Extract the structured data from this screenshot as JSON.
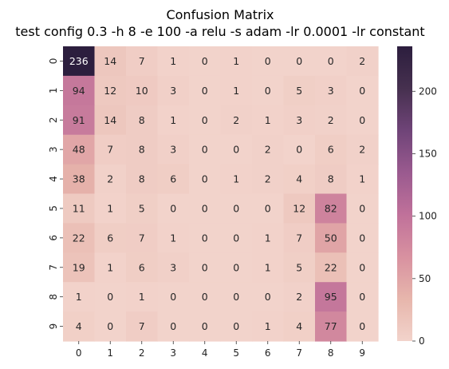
{
  "chart_data": {
    "type": "heatmap",
    "title": "Confusion Matrix",
    "subtitle": "test config 0.3 -h 8 -e 100 -a relu -s adam -lr 0.0001 -lr constant",
    "x_labels": [
      "0",
      "1",
      "2",
      "3",
      "4",
      "5",
      "6",
      "7",
      "8",
      "9"
    ],
    "y_labels": [
      "0",
      "1",
      "2",
      "3",
      "4",
      "5",
      "6",
      "7",
      "8",
      "9"
    ],
    "values": [
      [
        236,
        14,
        7,
        1,
        0,
        1,
        0,
        0,
        0,
        2
      ],
      [
        94,
        12,
        10,
        3,
        0,
        1,
        0,
        5,
        3,
        0
      ],
      [
        91,
        14,
        8,
        1,
        0,
        2,
        1,
        3,
        2,
        0
      ],
      [
        48,
        7,
        8,
        3,
        0,
        0,
        2,
        0,
        6,
        2
      ],
      [
        38,
        2,
        8,
        6,
        0,
        1,
        2,
        4,
        8,
        1
      ],
      [
        11,
        1,
        5,
        0,
        0,
        0,
        0,
        12,
        82,
        0
      ],
      [
        22,
        6,
        7,
        1,
        0,
        0,
        1,
        7,
        50,
        0
      ],
      [
        19,
        1,
        6,
        3,
        0,
        0,
        1,
        5,
        22,
        0
      ],
      [
        1,
        0,
        1,
        0,
        0,
        0,
        0,
        2,
        95,
        0
      ],
      [
        4,
        0,
        7,
        0,
        0,
        0,
        1,
        4,
        77,
        0
      ]
    ],
    "vmin": 0,
    "vmax": 236,
    "colorbar_ticks": [
      0,
      50,
      100,
      150,
      200
    ],
    "colormap": [
      "#f2d3cb",
      "#e7b6ac",
      "#d891a0",
      "#c0719a",
      "#9a5a8f",
      "#6f4478",
      "#46304f",
      "#2c1e3e"
    ]
  }
}
